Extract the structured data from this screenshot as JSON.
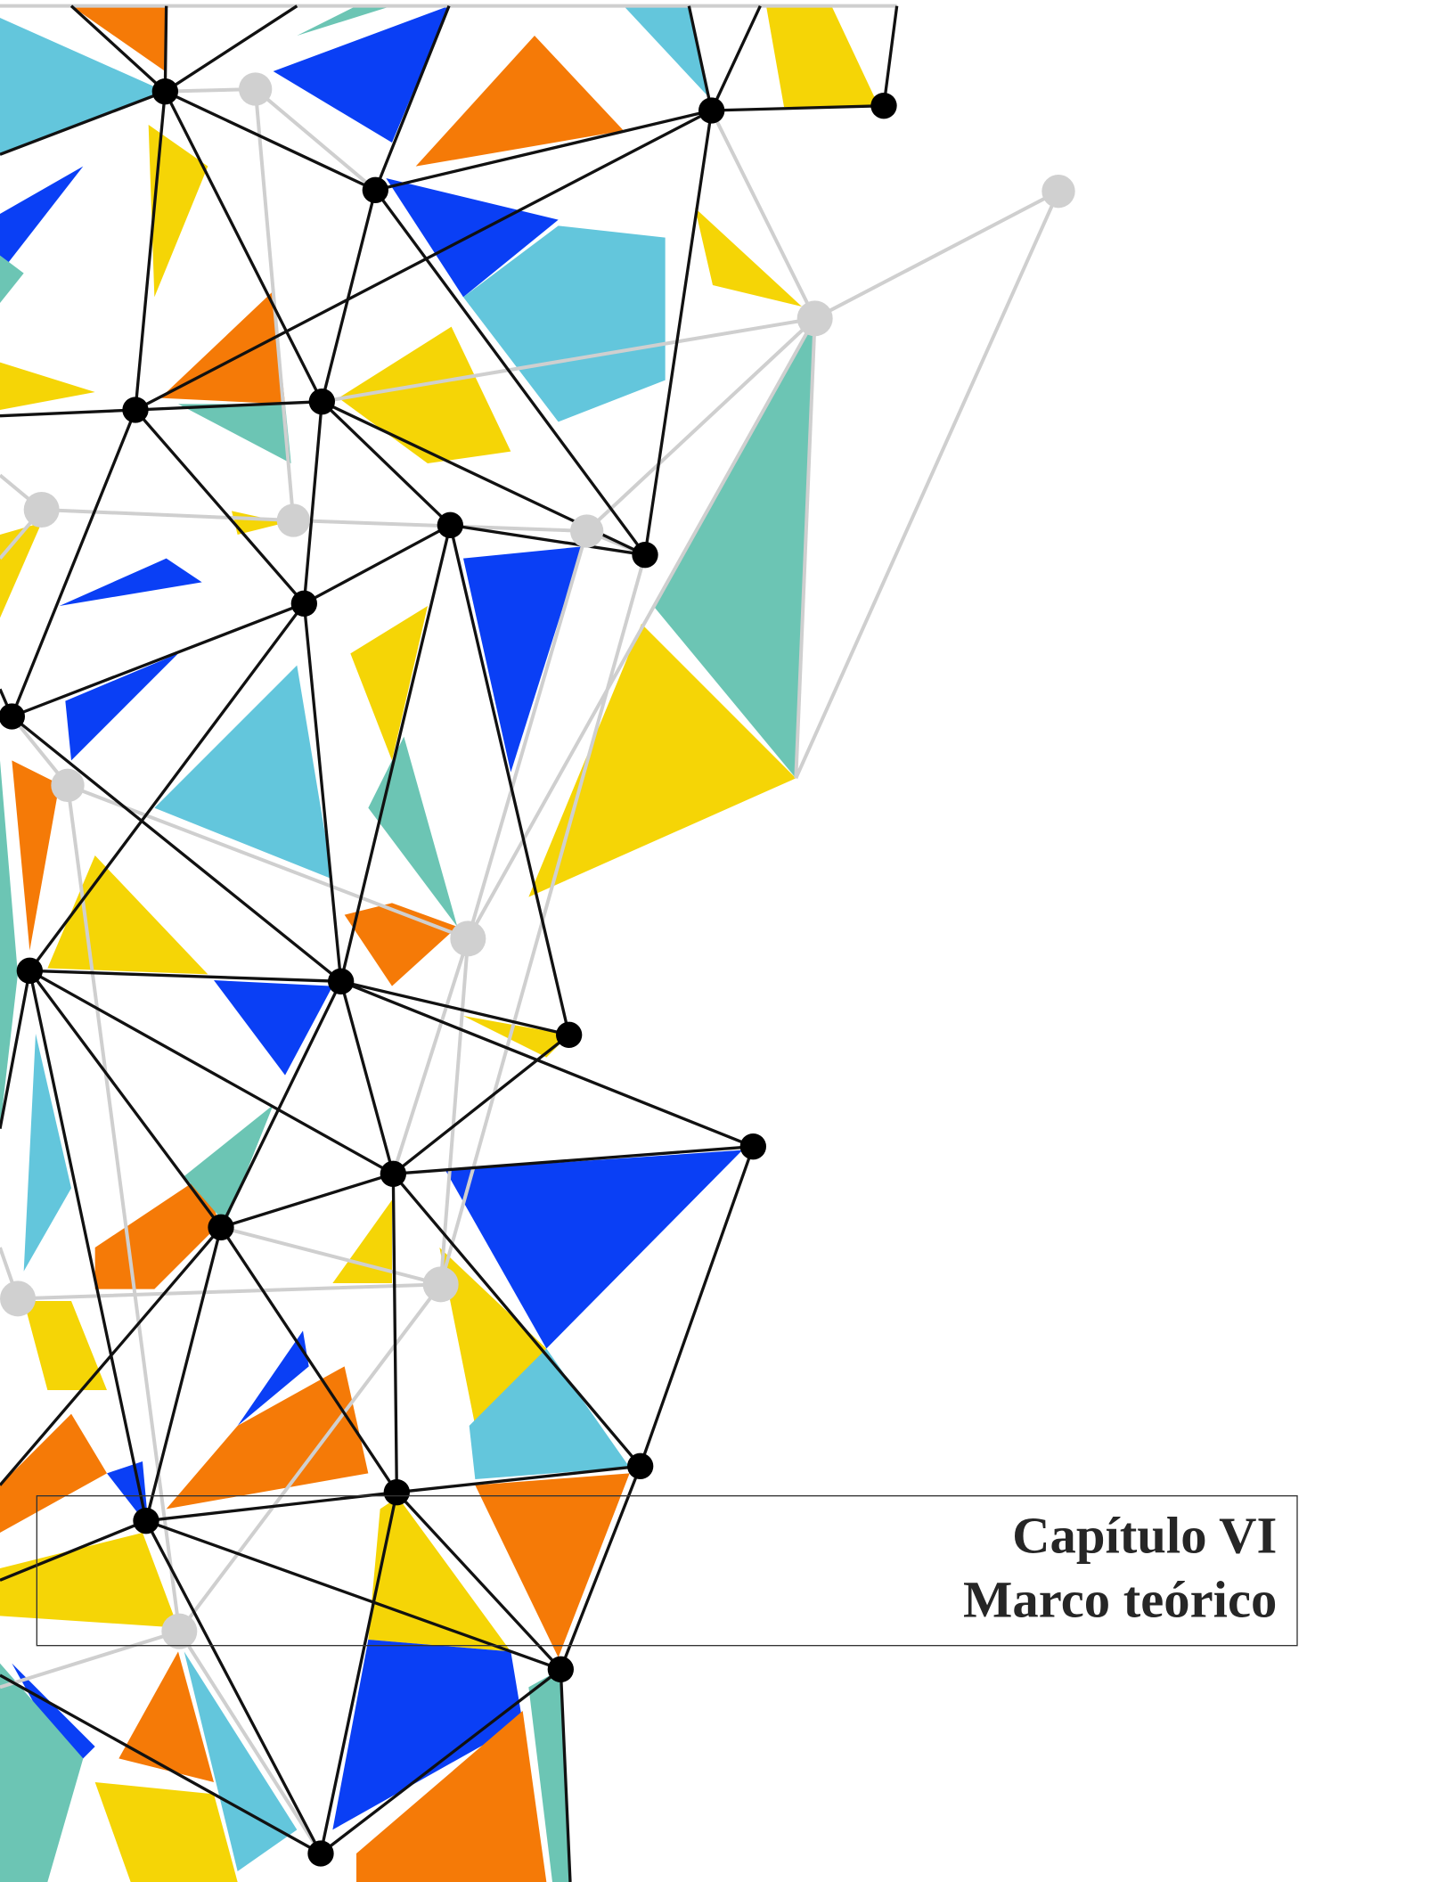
{
  "heading": {
    "line1": "Capítulo VI",
    "line2": "Marco teórico"
  }
}
